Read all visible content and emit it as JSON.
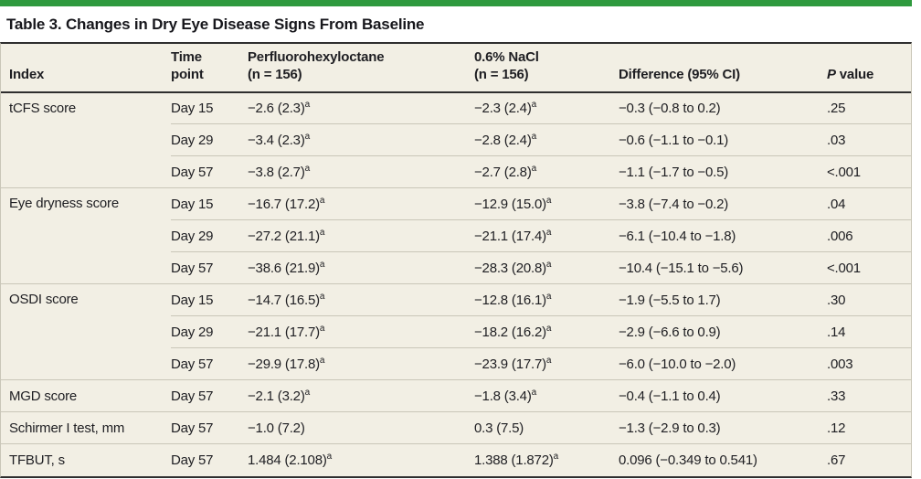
{
  "colors": {
    "accent_green": "#2f9a3e",
    "table_background": "#f2efe4",
    "rule_dark": "#2e2e2e",
    "rule_light": "#c9c6b8",
    "text": "#1e1e22"
  },
  "table": {
    "title": "Table 3. Changes in Dry Eye Disease Signs From Baseline",
    "footnote_marker": "a",
    "header": {
      "index": "Index",
      "time": "Time\npoint",
      "pfho": "Perfluorohexyloctane\n(n = 156)",
      "nacl": "0.6% NaCl\n(n = 156)",
      "diff": "Difference (95% CI)",
      "p_italic": "P",
      "p_rest": " value"
    },
    "groups": [
      {
        "label": "tCFS score",
        "span": 3
      },
      {
        "label": "Eye dryness score",
        "span": 3
      },
      {
        "label": "OSDI score",
        "span": 3
      },
      {
        "label": "MGD score",
        "span": 1
      },
      {
        "label": "Schirmer I test, mm",
        "span": 1
      },
      {
        "label": "TFBUT, s",
        "span": 1
      }
    ],
    "rows": [
      {
        "time": "Day 15",
        "pfho": "−2.6 (2.3)",
        "pfho_sup": "a",
        "nacl": "−2.3 (2.4)",
        "nacl_sup": "a",
        "diff": "−0.3 (−0.8 to 0.2)",
        "p": ".25"
      },
      {
        "time": "Day 29",
        "pfho": "−3.4 (2.3)",
        "pfho_sup": "a",
        "nacl": "−2.8 (2.4)",
        "nacl_sup": "a",
        "diff": "−0.6 (−1.1 to −0.1)",
        "p": ".03"
      },
      {
        "time": "Day 57",
        "pfho": "−3.8 (2.7)",
        "pfho_sup": "a",
        "nacl": "−2.7 (2.8)",
        "nacl_sup": "a",
        "diff": "−1.1 (−1.7 to −0.5)",
        "p": "<.001"
      },
      {
        "time": "Day 15",
        "pfho": "−16.7 (17.2)",
        "pfho_sup": "a",
        "nacl": "−12.9 (15.0)",
        "nacl_sup": "a",
        "diff": "−3.8 (−7.4 to −0.2)",
        "p": ".04"
      },
      {
        "time": "Day 29",
        "pfho": "−27.2 (21.1)",
        "pfho_sup": "a",
        "nacl": "−21.1 (17.4)",
        "nacl_sup": "a",
        "diff": "−6.1 (−10.4 to −1.8)",
        "p": ".006"
      },
      {
        "time": "Day 57",
        "pfho": "−38.6 (21.9)",
        "pfho_sup": "a",
        "nacl": "−28.3 (20.8)",
        "nacl_sup": "a",
        "diff": "−10.4 (−15.1 to −5.6)",
        "p": "<.001"
      },
      {
        "time": "Day 15",
        "pfho": "−14.7 (16.5)",
        "pfho_sup": "a",
        "nacl": "−12.8 (16.1)",
        "nacl_sup": "a",
        "diff": "−1.9 (−5.5 to 1.7)",
        "p": ".30"
      },
      {
        "time": "Day 29",
        "pfho": "−21.1 (17.7)",
        "pfho_sup": "a",
        "nacl": "−18.2 (16.2)",
        "nacl_sup": "a",
        "diff": "−2.9 (−6.6 to 0.9)",
        "p": ".14"
      },
      {
        "time": "Day 57",
        "pfho": "−29.9 (17.8)",
        "pfho_sup": "a",
        "nacl": "−23.9 (17.7)",
        "nacl_sup": "a",
        "diff": "−6.0 (−10.0 to −2.0)",
        "p": ".003"
      },
      {
        "time": "Day 57",
        "pfho": "−2.1 (3.2)",
        "pfho_sup": "a",
        "nacl": "−1.8 (3.4)",
        "nacl_sup": "a",
        "diff": "−0.4 (−1.1 to 0.4)",
        "p": ".33"
      },
      {
        "time": "Day 57",
        "pfho": "−1.0 (7.2)",
        "nacl": "0.3 (7.5)",
        "diff": "−1.3 (−2.9 to 0.3)",
        "p": ".12"
      },
      {
        "time": "Day 57",
        "pfho": "1.484 (2.108)",
        "pfho_sup": "a",
        "nacl": "1.388 (1.872)",
        "nacl_sup": "a",
        "diff": "0.096 (−0.349 to 0.541)",
        "p": ".67"
      }
    ]
  }
}
